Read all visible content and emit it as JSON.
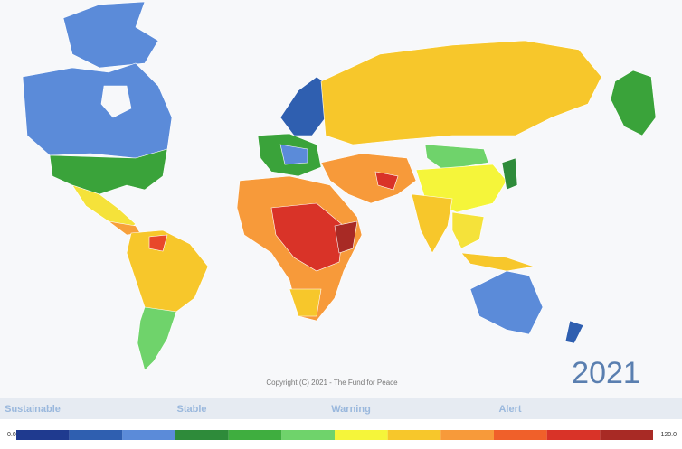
{
  "map": {
    "copyright": "Copyright (C) 2021 - The Fund for Peace",
    "year": "2021"
  },
  "legend": {
    "groups": [
      "Sustainable",
      "Stable",
      "Warning",
      "Alert"
    ],
    "min": "0.0",
    "max": "120.0",
    "colors": [
      "#1f3a8f",
      "#2f5fb0",
      "#5b8bd9",
      "#2e8b3a",
      "#3fae3f",
      "#6fd36b",
      "#f5f53a",
      "#f7c72b",
      "#f79a3a",
      "#f0602a",
      "#d93328",
      "#a82a25"
    ]
  }
}
